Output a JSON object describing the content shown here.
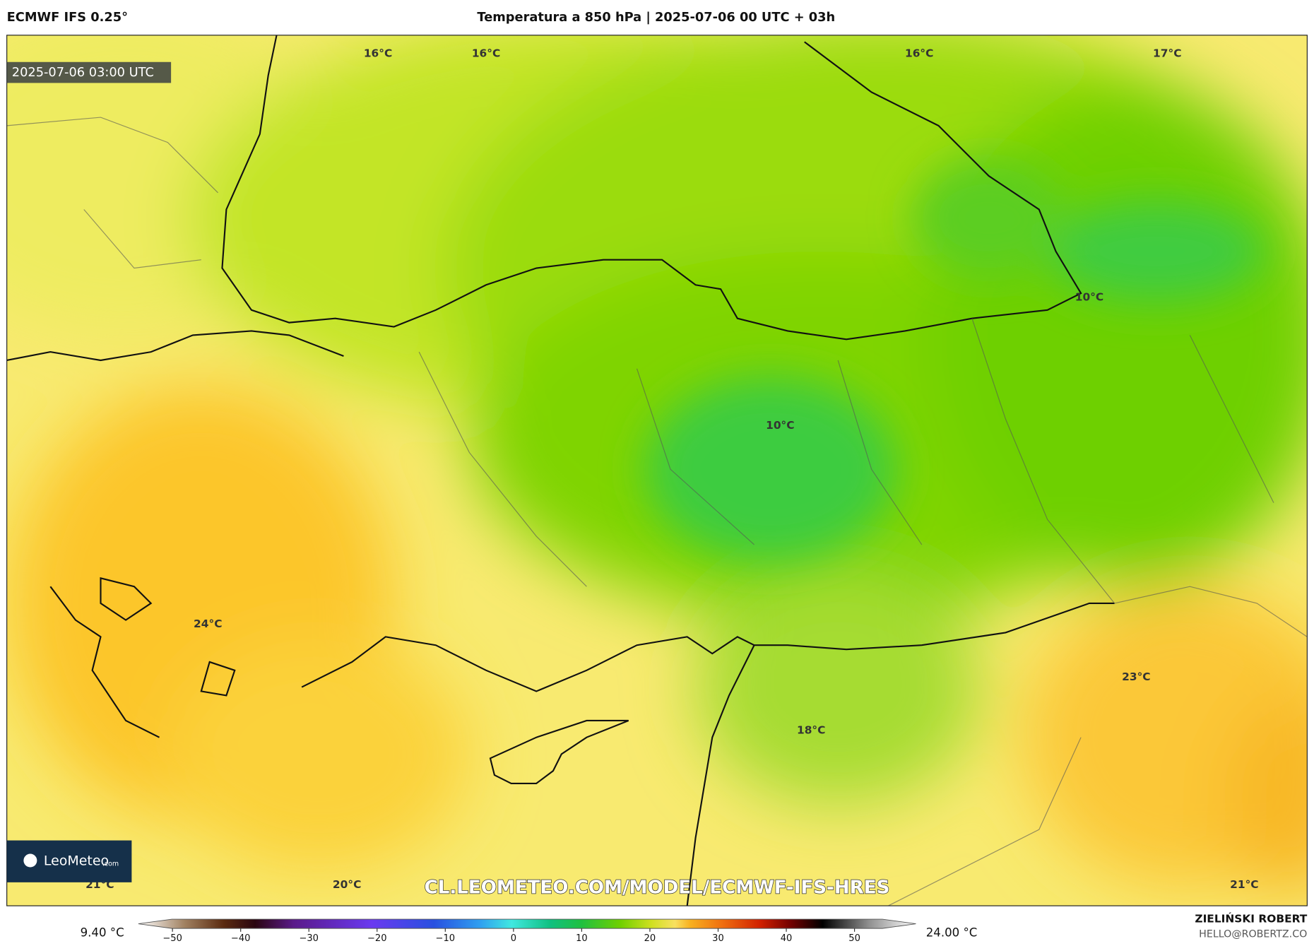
{
  "header": {
    "model": "ECMWF IFS 0.25°",
    "title": "Temperatura a 850 hPa | 2025-07-06 00 UTC + 03h"
  },
  "timestamp": "2025-07-06 03:00 UTC",
  "contour_labels": [
    "16°C",
    "16°C",
    "16°C",
    "17°C",
    "10°C",
    "10°C",
    "24°C",
    "23°C",
    "18°C",
    "21°C",
    "20°C",
    "21°C"
  ],
  "logo": {
    "name": "LeoMeteo",
    "suffix": ".com"
  },
  "watermark": "CL.LEOMETEO.COM/MODEL/ECMWF-IFS-HRES",
  "colorbar": {
    "lim": [
      -55,
      59
    ],
    "ticks": [
      {
        "value": -50,
        "label": "−50"
      },
      {
        "value": -40,
        "label": "−40"
      },
      {
        "value": -30,
        "label": "−30"
      },
      {
        "value": -20,
        "label": "−20"
      },
      {
        "value": -10,
        "label": "−10"
      },
      0,
      10,
      20,
      30,
      40,
      50
    ],
    "min_label": "9.40 °C",
    "max_label": "24.00 °C"
  },
  "credits": {
    "author": "ZIELIŃSKI ROBERT",
    "email": "HELLO@ROBERTZ.CO"
  }
}
